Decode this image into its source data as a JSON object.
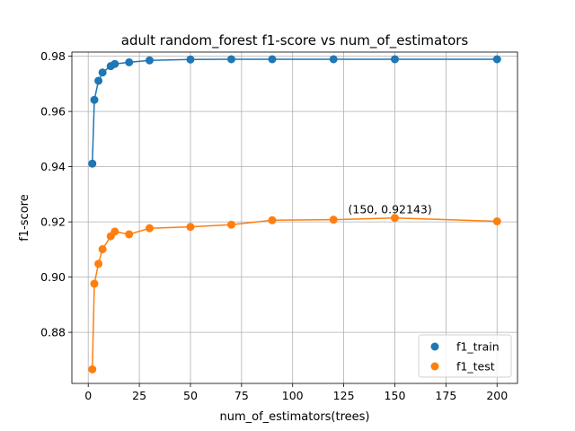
{
  "chart_data": {
    "type": "line",
    "title": "adult random_forest f1-score vs num_of_estimators",
    "xlabel": "num_of_estimators(trees)",
    "ylabel": "f1-score",
    "xlim": [
      -8,
      210
    ],
    "ylim": [
      0.8615,
      0.9815
    ],
    "xticks": [
      0,
      25,
      50,
      75,
      100,
      125,
      150,
      175,
      200
    ],
    "yticks": [
      0.88,
      0.9,
      0.92,
      0.94,
      0.96,
      0.98
    ],
    "ytick_labels": [
      "0.88",
      "0.90",
      "0.92",
      "0.94",
      "0.96",
      "0.98"
    ],
    "grid": true,
    "legend_position": "lower-right",
    "x": [
      2,
      3,
      5,
      7,
      11,
      13,
      20,
      30,
      50,
      70,
      90,
      120,
      150,
      200
    ],
    "series": [
      {
        "name": "f1_train",
        "color": "#1f77b4",
        "values": [
          0.9411,
          0.9642,
          0.9711,
          0.9741,
          0.9764,
          0.9772,
          0.9778,
          0.9785,
          0.9788,
          0.9789,
          0.9789,
          0.9789,
          0.9789,
          0.9789
        ]
      },
      {
        "name": "f1_test",
        "color": "#ff7f0e",
        "values": [
          0.8666,
          0.8976,
          0.9048,
          0.9101,
          0.9148,
          0.9165,
          0.9155,
          0.9177,
          0.9182,
          0.919,
          0.9206,
          0.9208,
          0.92143,
          0.9202
        ]
      }
    ],
    "annotations": [
      {
        "text": "(150, 0.92143)",
        "x": 150,
        "y": 0.92143
      }
    ]
  }
}
